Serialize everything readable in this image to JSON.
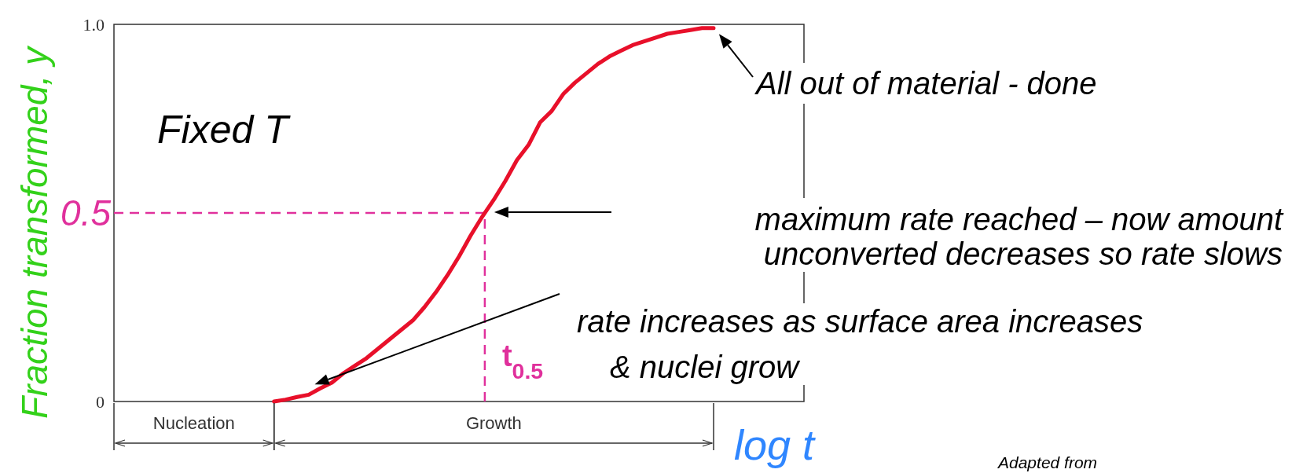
{
  "chart_data": {
    "type": "line",
    "ylabel": "Fraction transformed, y",
    "categories": [
      null,
      null,
      null,
      null,
      null,
      null,
      null,
      null,
      null,
      null,
      null,
      null,
      null,
      null,
      null,
      null,
      null,
      null,
      null,
      null,
      null,
      null,
      null,
      null,
      null,
      null,
      null,
      null,
      null,
      null,
      null,
      null,
      null,
      null,
      null,
      null,
      null,
      null,
      null
    ],
    "ylim": [
      0,
      1
    ],
    "yticks": [
      0,
      {
        "value": 1,
        "label": "1.0"
      }
    ],
    "tick_labels": "y",
    "marker": "none",
    "line_style": "solid",
    "series": [
      {
        "color": "#e8102a",
        "values": [
          0,
          0.005,
          0.012,
          0.018,
          0.035,
          0.05,
          0.075,
          0.095,
          0.115,
          0.14,
          0.165,
          0.19,
          0.215,
          0.25,
          0.29,
          0.335,
          0.385,
          0.44,
          0.49,
          0.535,
          0.585,
          0.64,
          0.68,
          0.74,
          0.77,
          0.815,
          0.845,
          0.87,
          0.895,
          0.915,
          0.93,
          0.945,
          0.955,
          0.965,
          0.975,
          0.98,
          0.985,
          0.99,
          0.99
        ]
      }
    ],
    "ref_lines": [
      {
        "axis": "y",
        "value": 0.5,
        "label": "0.5",
        "color": "#e0309c",
        "line_style": "dashed"
      }
    ],
    "annotations": [
      "Fixed T",
      "All out of material - done",
      "maximum rate reached – now amount\nunconverted decreases so rate slows",
      "rate increases as surface area increases\n& nuclei grow",
      "t$_{0.5}$",
      "Nucleation",
      "Growth",
      "Adapted from",
      "log t"
    ]
  }
}
